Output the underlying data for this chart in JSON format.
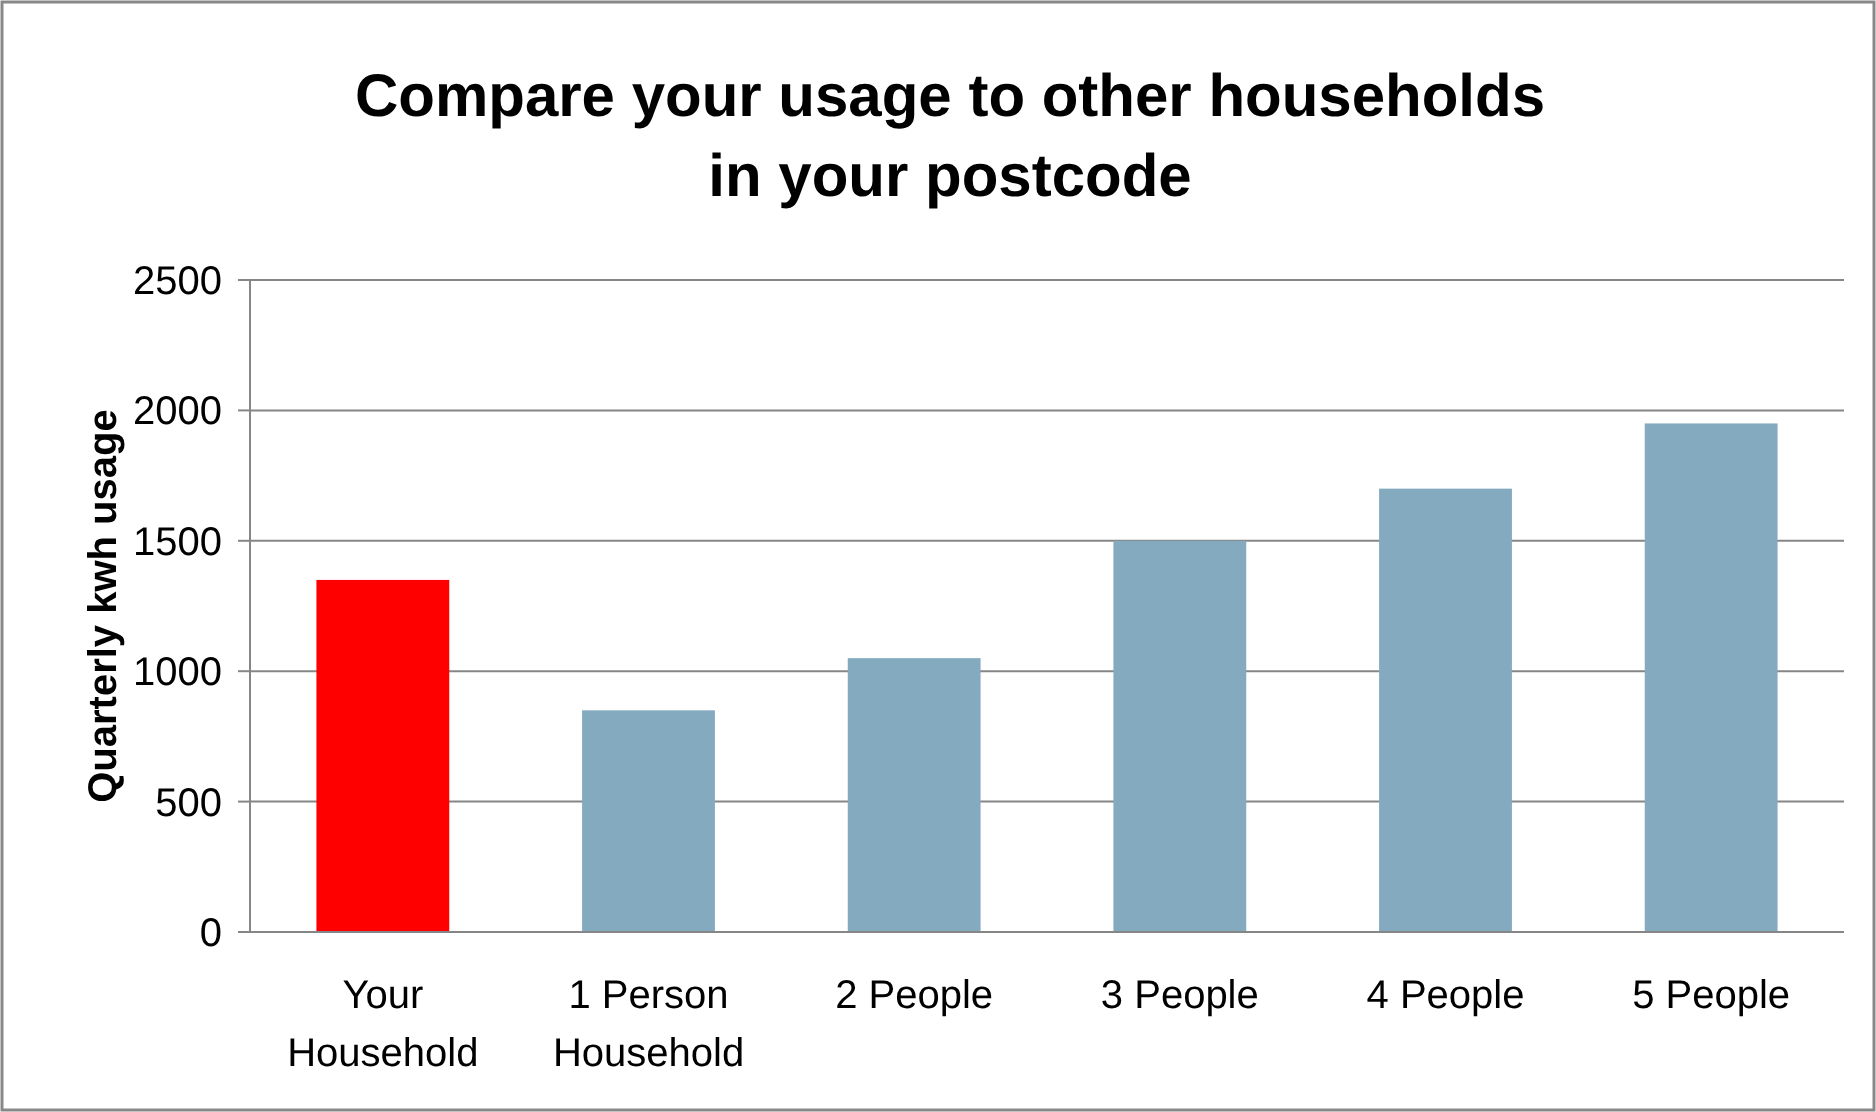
{
  "chart_data": {
    "type": "bar",
    "title": "Compare your usage to other  households in your postcode",
    "ylabel": "Quarterly kwh usage",
    "categories": [
      "Your Household",
      "1 Person Household",
      "2 People",
      "3 People",
      "4 People",
      "5 People"
    ],
    "values": [
      1350,
      850,
      1050,
      1500,
      1700,
      1950
    ],
    "colors": [
      "#ff0000",
      "#84aac0",
      "#84aac0",
      "#84aac0",
      "#84aac0",
      "#84aac0"
    ],
    "ylim": [
      0,
      2500
    ],
    "yticks": [
      0,
      500,
      1000,
      1500,
      2000,
      2500
    ],
    "grid": "y"
  }
}
